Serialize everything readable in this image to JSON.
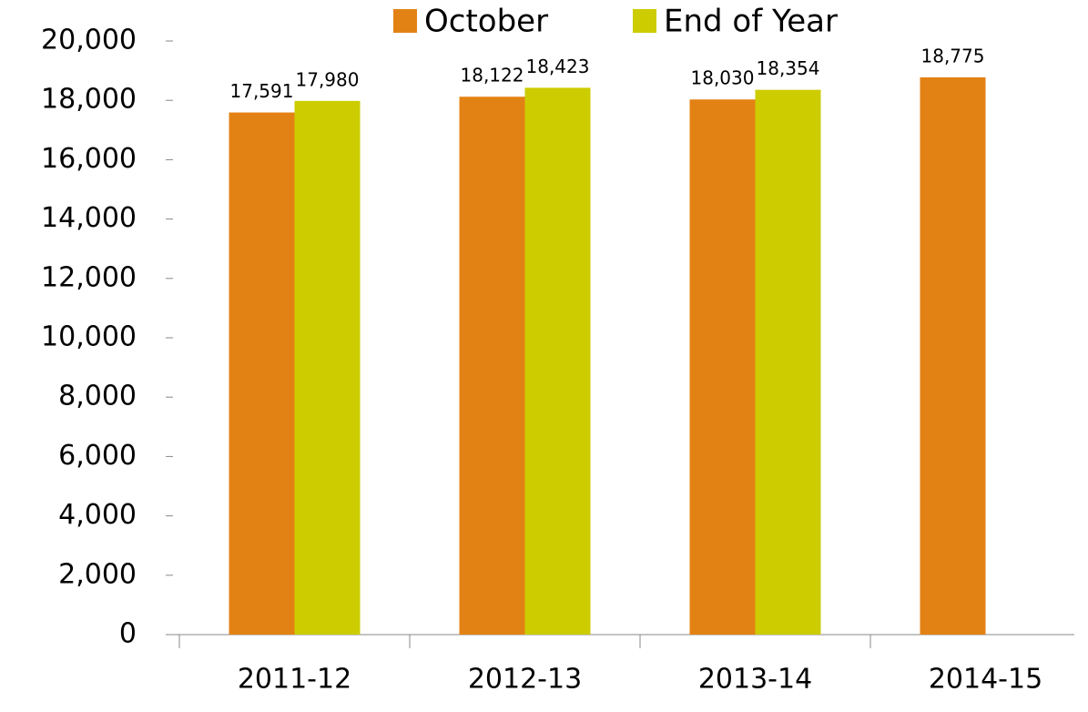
{
  "chart_data": {
    "type": "bar",
    "categories": [
      "2011-12",
      "2012-13",
      "2013-14",
      "2014-15"
    ],
    "series": [
      {
        "name": "October",
        "color": "#e38214",
        "values": [
          17591,
          18122,
          18030,
          18775
        ],
        "value_labels": [
          "17,591",
          "18,122",
          "18,030",
          "18,775"
        ]
      },
      {
        "name": "End of Year",
        "color": "#cccc00",
        "values": [
          17980,
          18423,
          18354,
          null
        ],
        "value_labels": [
          "17,980",
          "18,423",
          "18,354",
          null
        ]
      }
    ],
    "ylim": [
      0,
      20000
    ],
    "yticks": [
      0,
      {
        "value": 2000,
        "label": "2,000"
      },
      {
        "value": 4000,
        "label": "4,000"
      },
      {
        "value": 6000,
        "label": "6,000"
      },
      {
        "value": 8000,
        "label": "8,000"
      },
      {
        "value": 10000,
        "label": "10,000"
      },
      {
        "value": 12000,
        "label": "12,000"
      },
      {
        "value": 14000,
        "label": "14,000"
      },
      {
        "value": 16000,
        "label": "16,000"
      },
      {
        "value": 18000,
        "label": "18,000"
      },
      {
        "value": 20000,
        "label": "20,000"
      }
    ],
    "legend": "top",
    "grid": false
  }
}
